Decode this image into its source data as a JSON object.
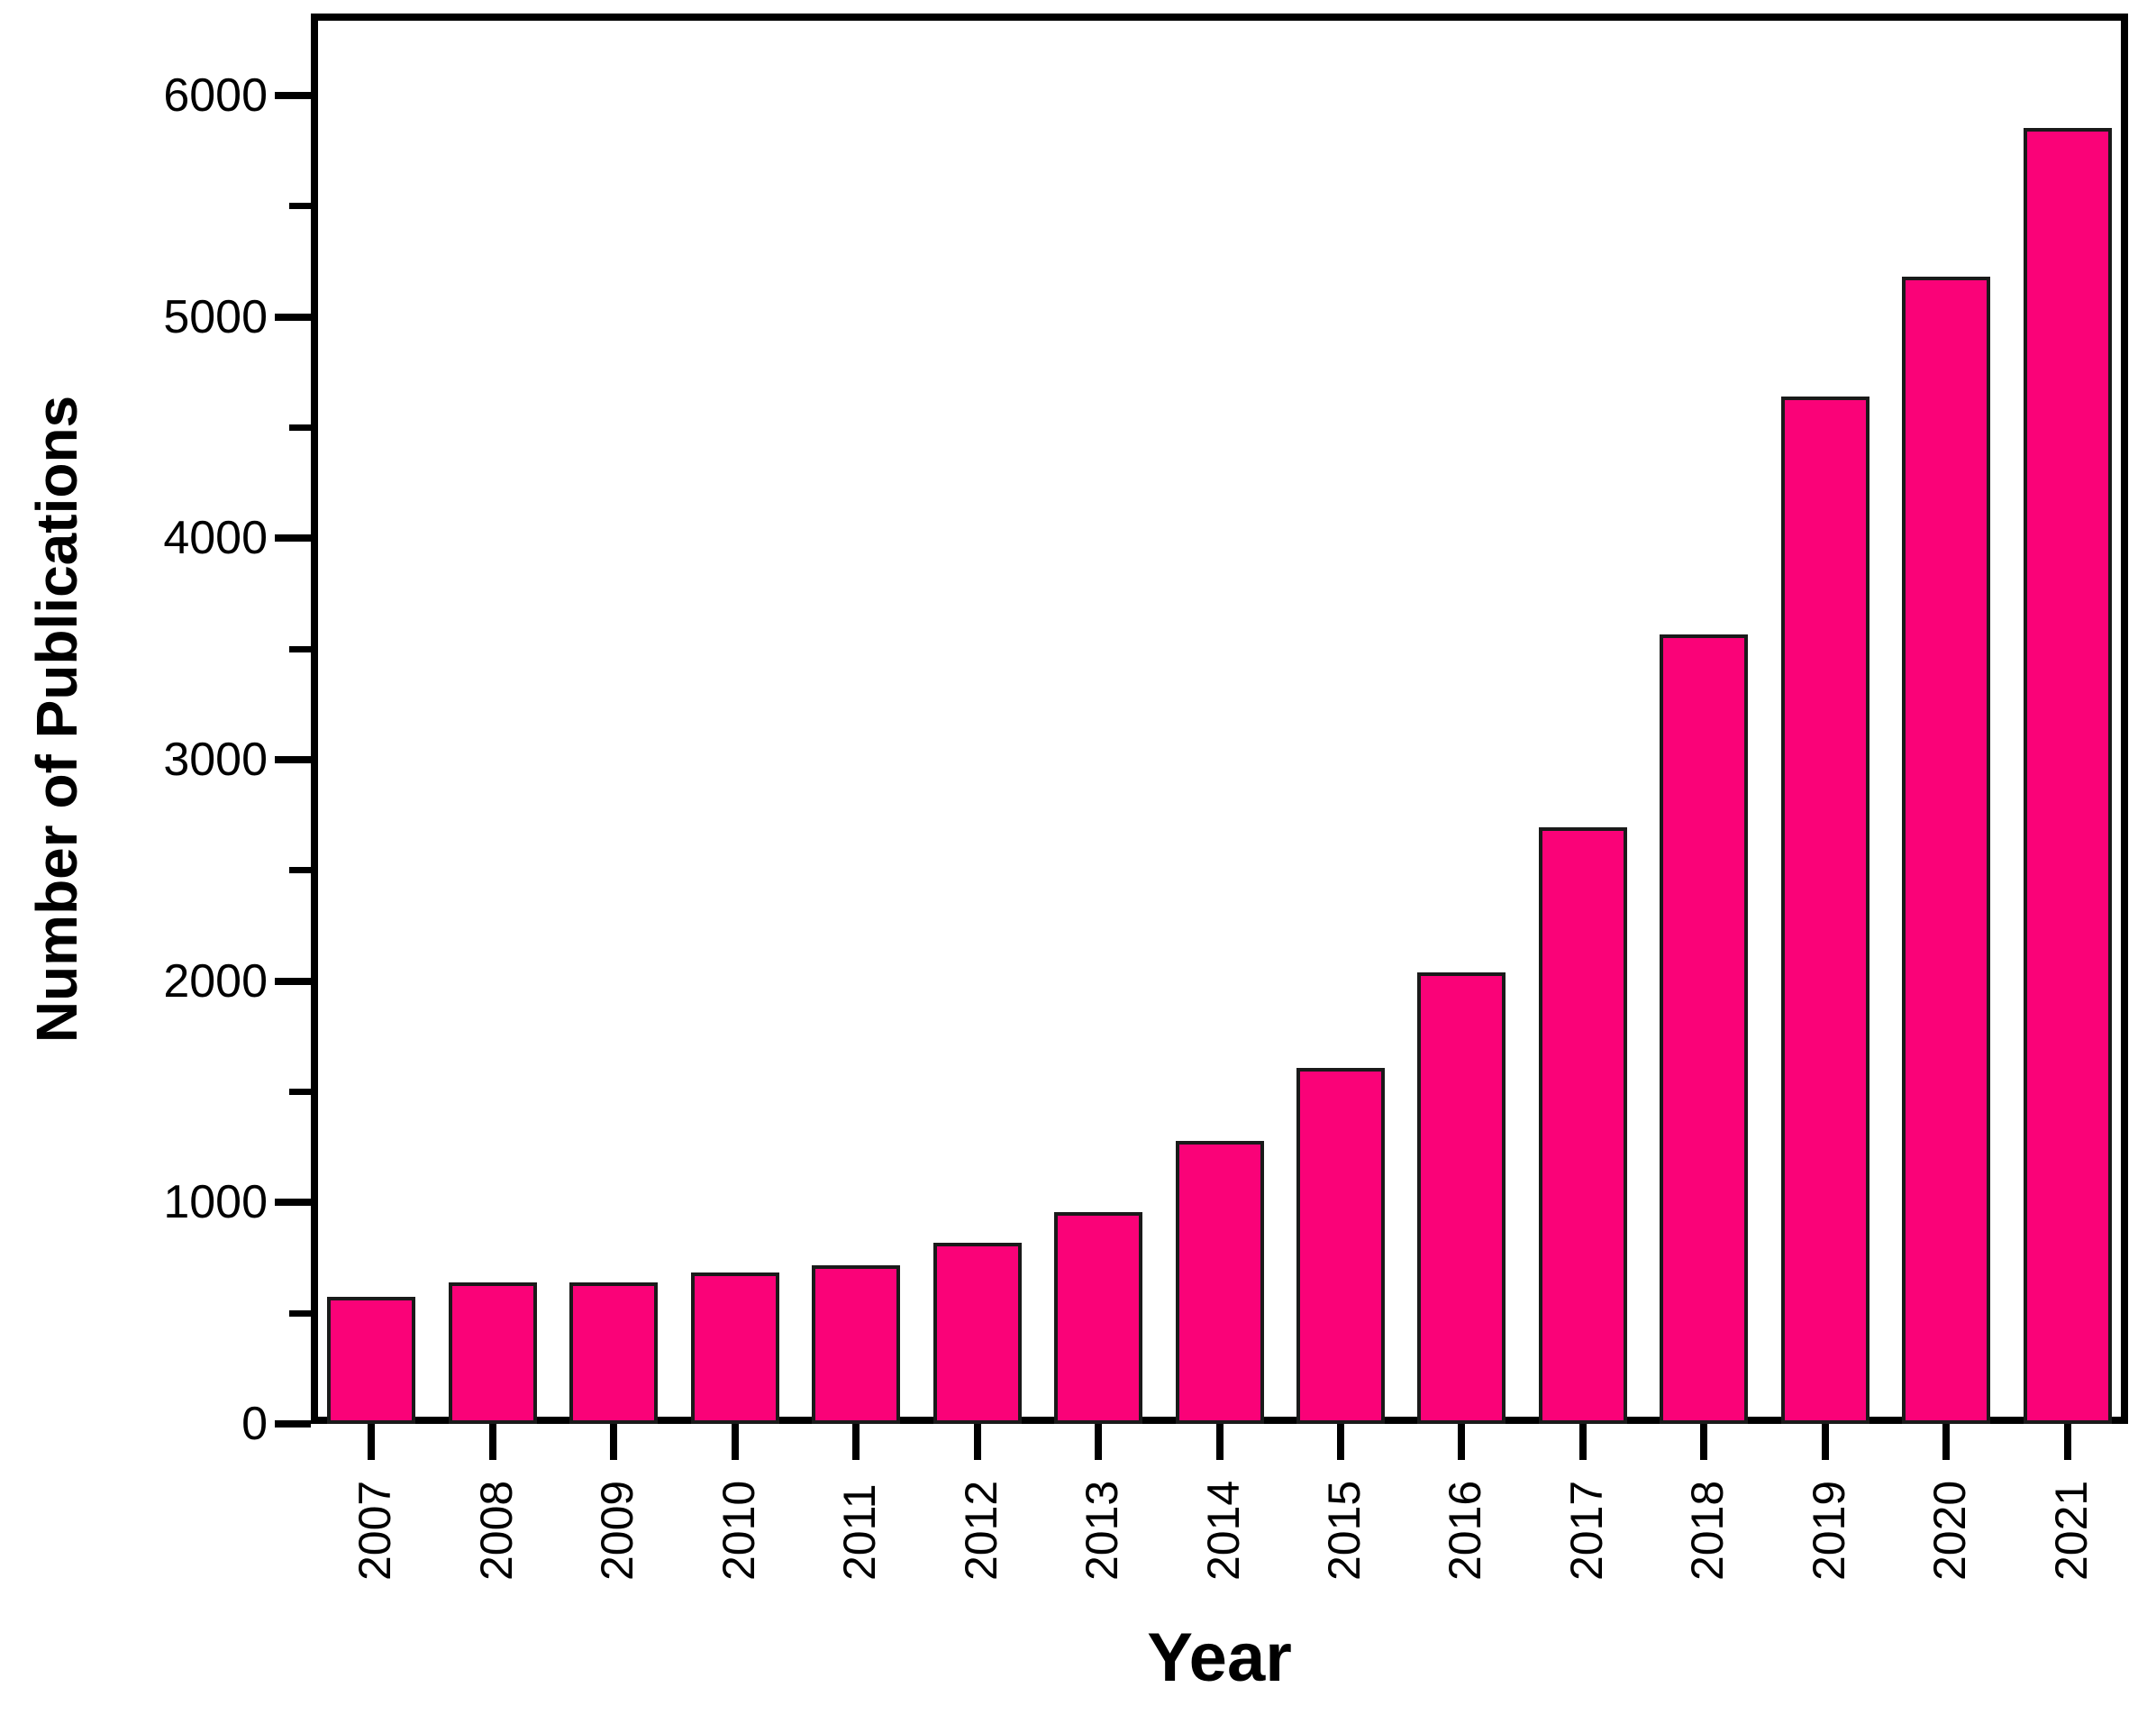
{
  "chart_data": {
    "type": "bar",
    "title": "",
    "xlabel": "Year",
    "ylabel": "Number of Publications",
    "categories": [
      "2007",
      "2008",
      "2009",
      "2010",
      "2011",
      "2012",
      "2013",
      "2014",
      "2015",
      "2016",
      "2017",
      "2018",
      "2019",
      "2020",
      "2021"
    ],
    "values": [
      575,
      640,
      638,
      683,
      718,
      818,
      958,
      1280,
      1608,
      2040,
      2695,
      3565,
      4640,
      5180,
      5855
    ],
    "ylim": [
      0,
      6370
    ],
    "y_major_ticks": [
      0,
      1000,
      2000,
      3000,
      4000,
      5000,
      6000
    ],
    "y_minor_ticks": [
      500,
      1500,
      2500,
      3500,
      4500,
      5500
    ],
    "grid": false,
    "legend": null,
    "bar_fill": "#FA0278",
    "bar_outline": "#1A1A1A",
    "axis_color": "#000000",
    "background": "#FFFFFF"
  }
}
